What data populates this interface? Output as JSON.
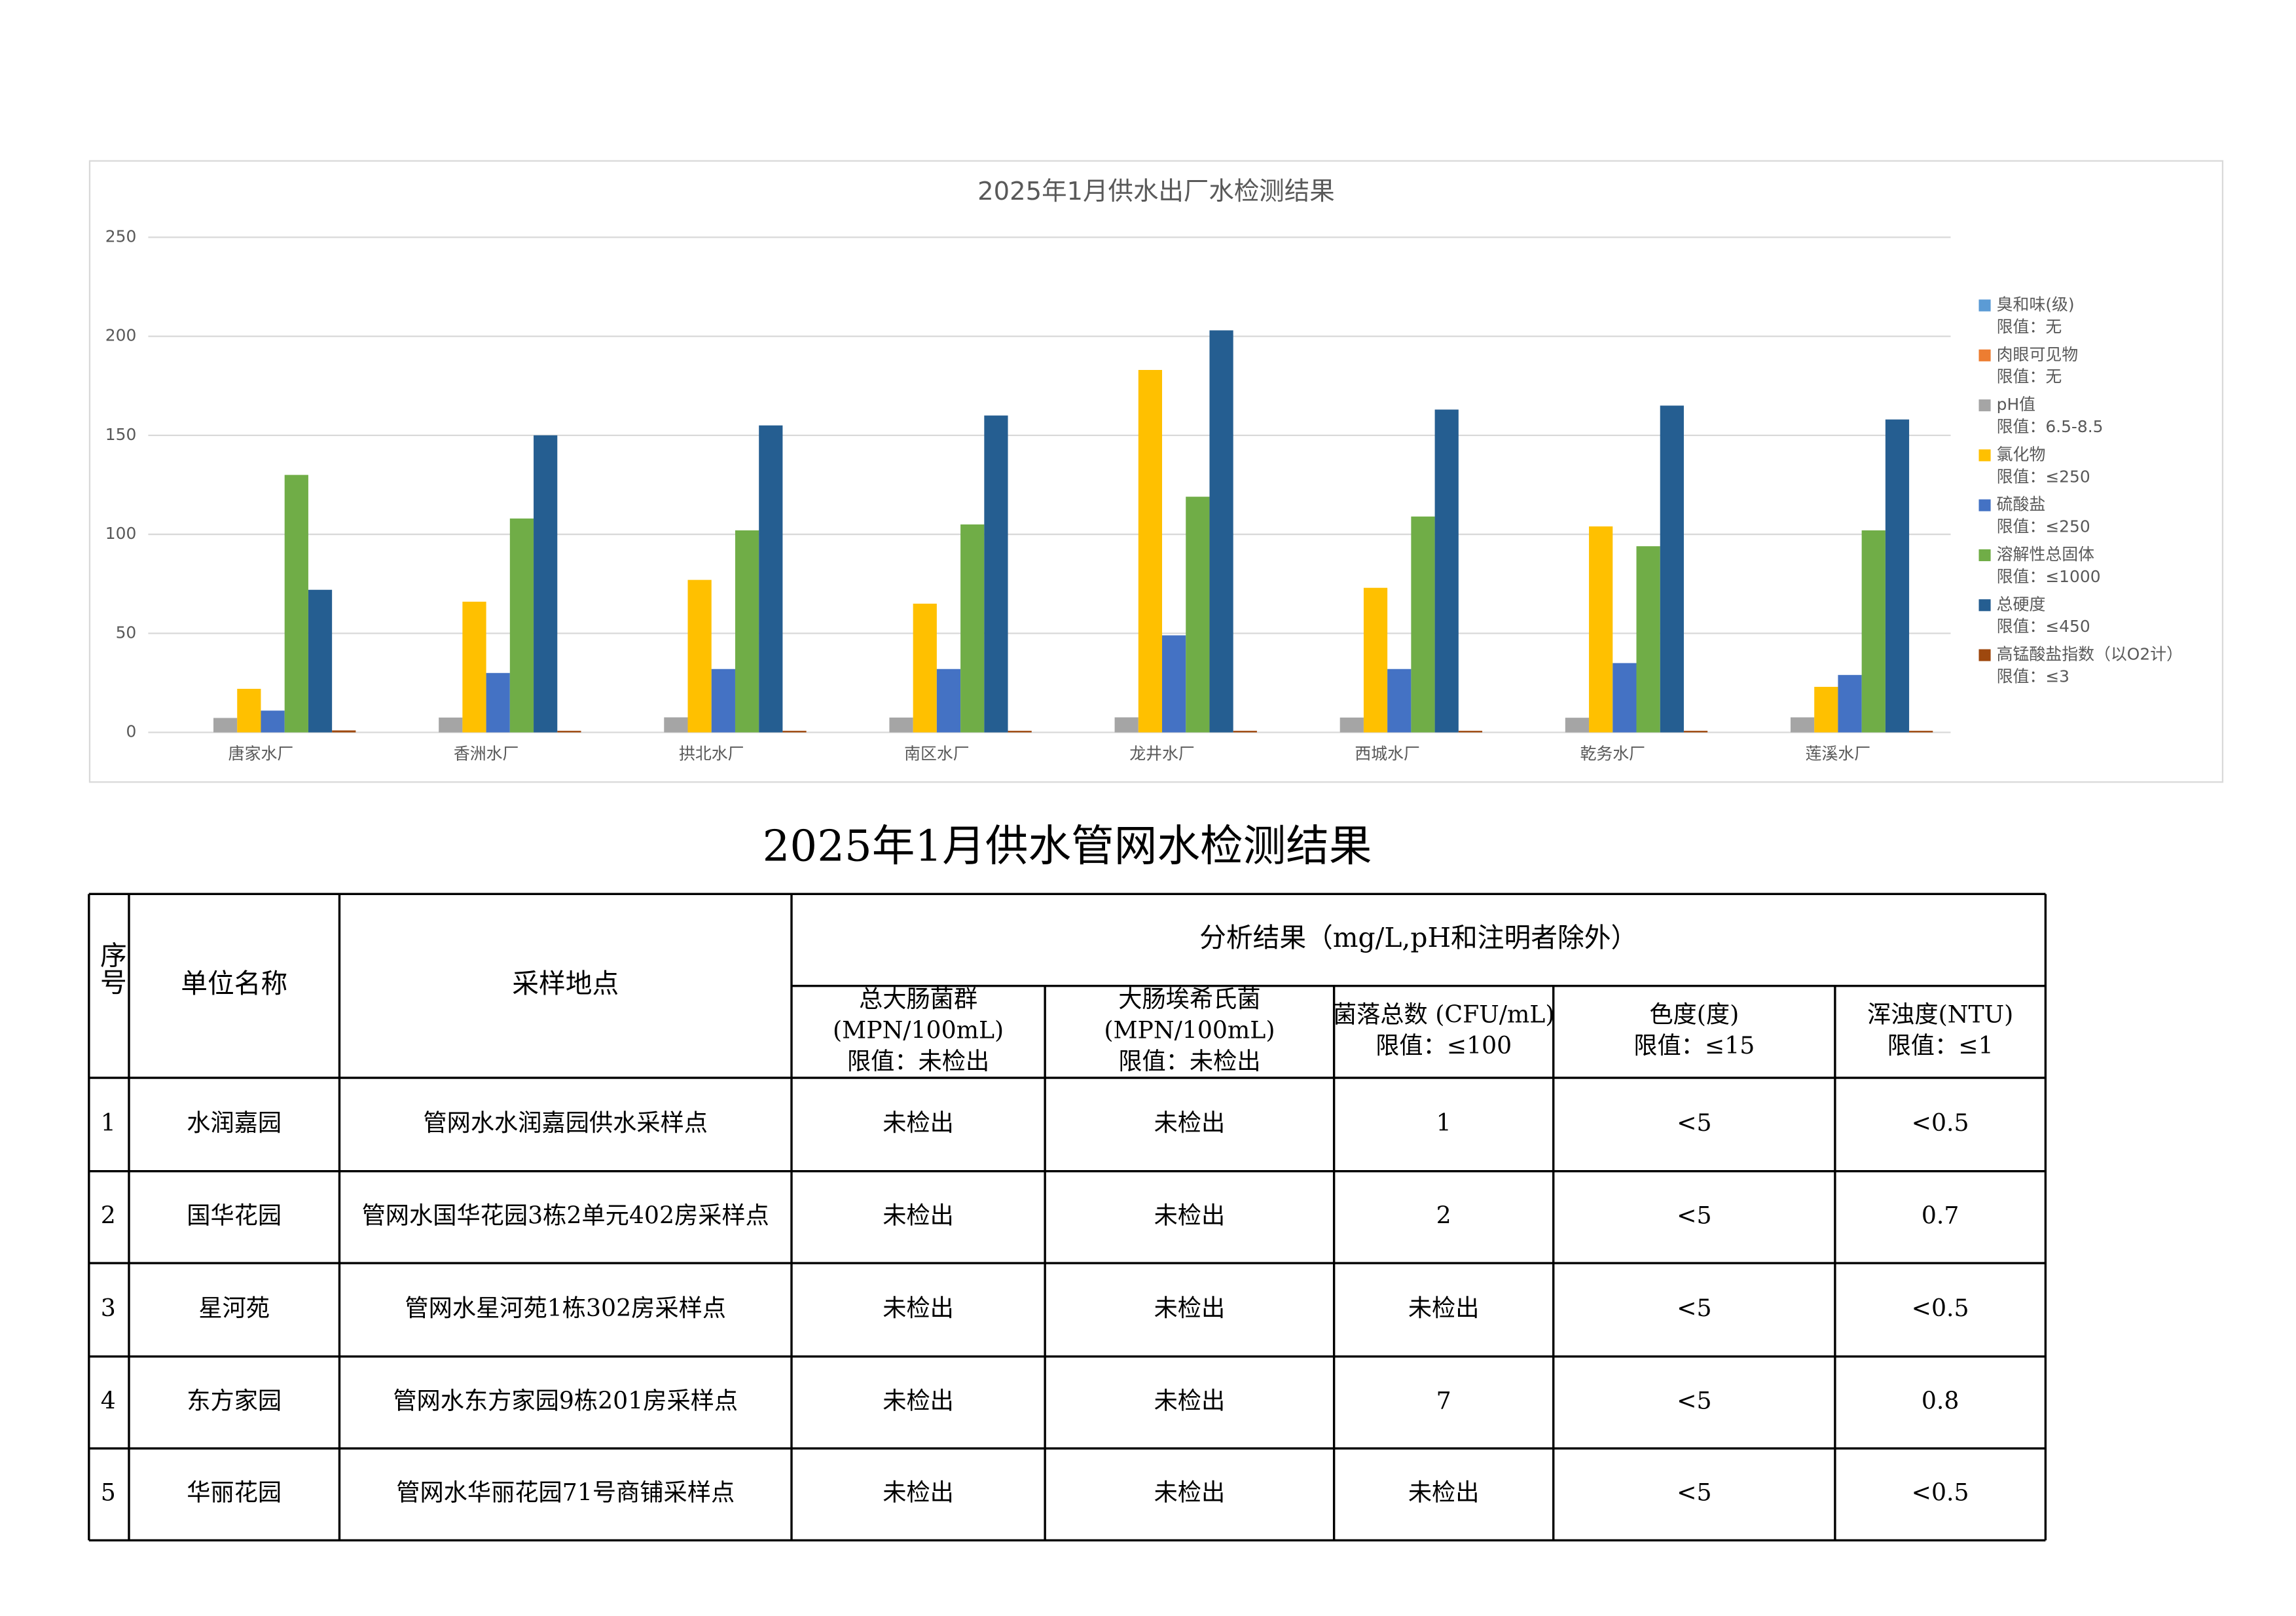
{
  "chart_data": {
    "type": "bar",
    "title": "2025年1月供水出厂水检测结果",
    "categories": [
      "唐家水厂",
      "香洲水厂",
      "拱北水厂",
      "南区水厂",
      "龙井水厂",
      "西城水厂",
      "乾务水厂",
      "莲溪水厂"
    ],
    "series": [
      {
        "name": "臭和味(级)",
        "limit": "限值：无",
        "color": "#5b9bd5",
        "values": [
          0,
          0,
          0,
          0,
          0,
          0,
          0,
          0
        ]
      },
      {
        "name": "肉眼可见物",
        "limit": "限值：无",
        "color": "#ed7d31",
        "values": [
          0,
          0,
          0,
          0,
          0,
          0,
          0,
          0
        ]
      },
      {
        "name": "pH值",
        "limit": "限值：6.5-8.5",
        "color": "#a5a5a5",
        "values": [
          7.3,
          7.5,
          7.6,
          7.5,
          7.6,
          7.5,
          7.4,
          7.6
        ]
      },
      {
        "name": "氯化物",
        "limit": "限值：≤250",
        "color": "#ffc000",
        "values": [
          22,
          66,
          77,
          65,
          183,
          73,
          104,
          23
        ]
      },
      {
        "name": "硫酸盐",
        "limit": "限值：≤250",
        "color": "#4472c4",
        "values": [
          11,
          30,
          32,
          32,
          49,
          32,
          35,
          29
        ]
      },
      {
        "name": "溶解性总固体",
        "limit": "限值：≤1000",
        "color": "#70ad47",
        "values": [
          130,
          108,
          102,
          105,
          119,
          109,
          94,
          102
        ]
      },
      {
        "name": "总硬度",
        "limit": "限值：≤450",
        "color": "#255e91",
        "values": [
          72,
          150,
          155,
          160,
          203,
          163,
          165,
          158
        ]
      },
      {
        "name": "高锰酸盐指数（以O2计）",
        "limit": "限值：≤3",
        "color": "#9e480e",
        "values": [
          1,
          0.8,
          0.8,
          0.8,
          0.8,
          0.8,
          0.8,
          0.8
        ]
      }
    ],
    "ylim": [
      0,
      250
    ],
    "yticks": [
      0,
      50,
      100,
      150,
      200,
      250
    ],
    "grid": true,
    "legend": "right"
  },
  "table": {
    "title": "2025年1月供水管网水检测结果",
    "header": [
      "序号",
      "单位名称",
      "采样地点"
    ],
    "group": "分析结果（mg/L,pH和注明者除外）",
    "subheaders": [
      [
        "总大肠菌群",
        "(MPN/100mL)",
        "限值：未检出"
      ],
      [
        "大肠埃希氏菌",
        "(MPN/100mL)",
        "限值：未检出"
      ],
      [
        "菌落总数 (CFU/mL)",
        "限值：≤100"
      ],
      [
        "色度(度)",
        "限值：≤15"
      ],
      [
        "浑浊度(NTU)",
        "限值：≤1"
      ]
    ],
    "rows": [
      [
        "1",
        "水润嘉园",
        "管网水水润嘉园供水采样点",
        "未检出",
        "未检出",
        "1",
        "<5",
        "<0.5"
      ],
      [
        "2",
        "国华花园",
        "管网水国华花园3栋2单元402房采样点",
        "未检出",
        "未检出",
        "2",
        "<5",
        "0.7"
      ],
      [
        "3",
        "星河苑",
        "管网水星河苑1栋302房采样点",
        "未检出",
        "未检出",
        "未检出",
        "<5",
        "<0.5"
      ],
      [
        "4",
        "东方家园",
        "管网水东方家园9栋201房采样点",
        "未检出",
        "未检出",
        "7",
        "<5",
        "0.8"
      ],
      [
        "5",
        "华丽花园",
        "管网水华丽花园71号商铺采样点",
        "未检出",
        "未检出",
        "未检出",
        "<5",
        "<0.5"
      ]
    ]
  }
}
